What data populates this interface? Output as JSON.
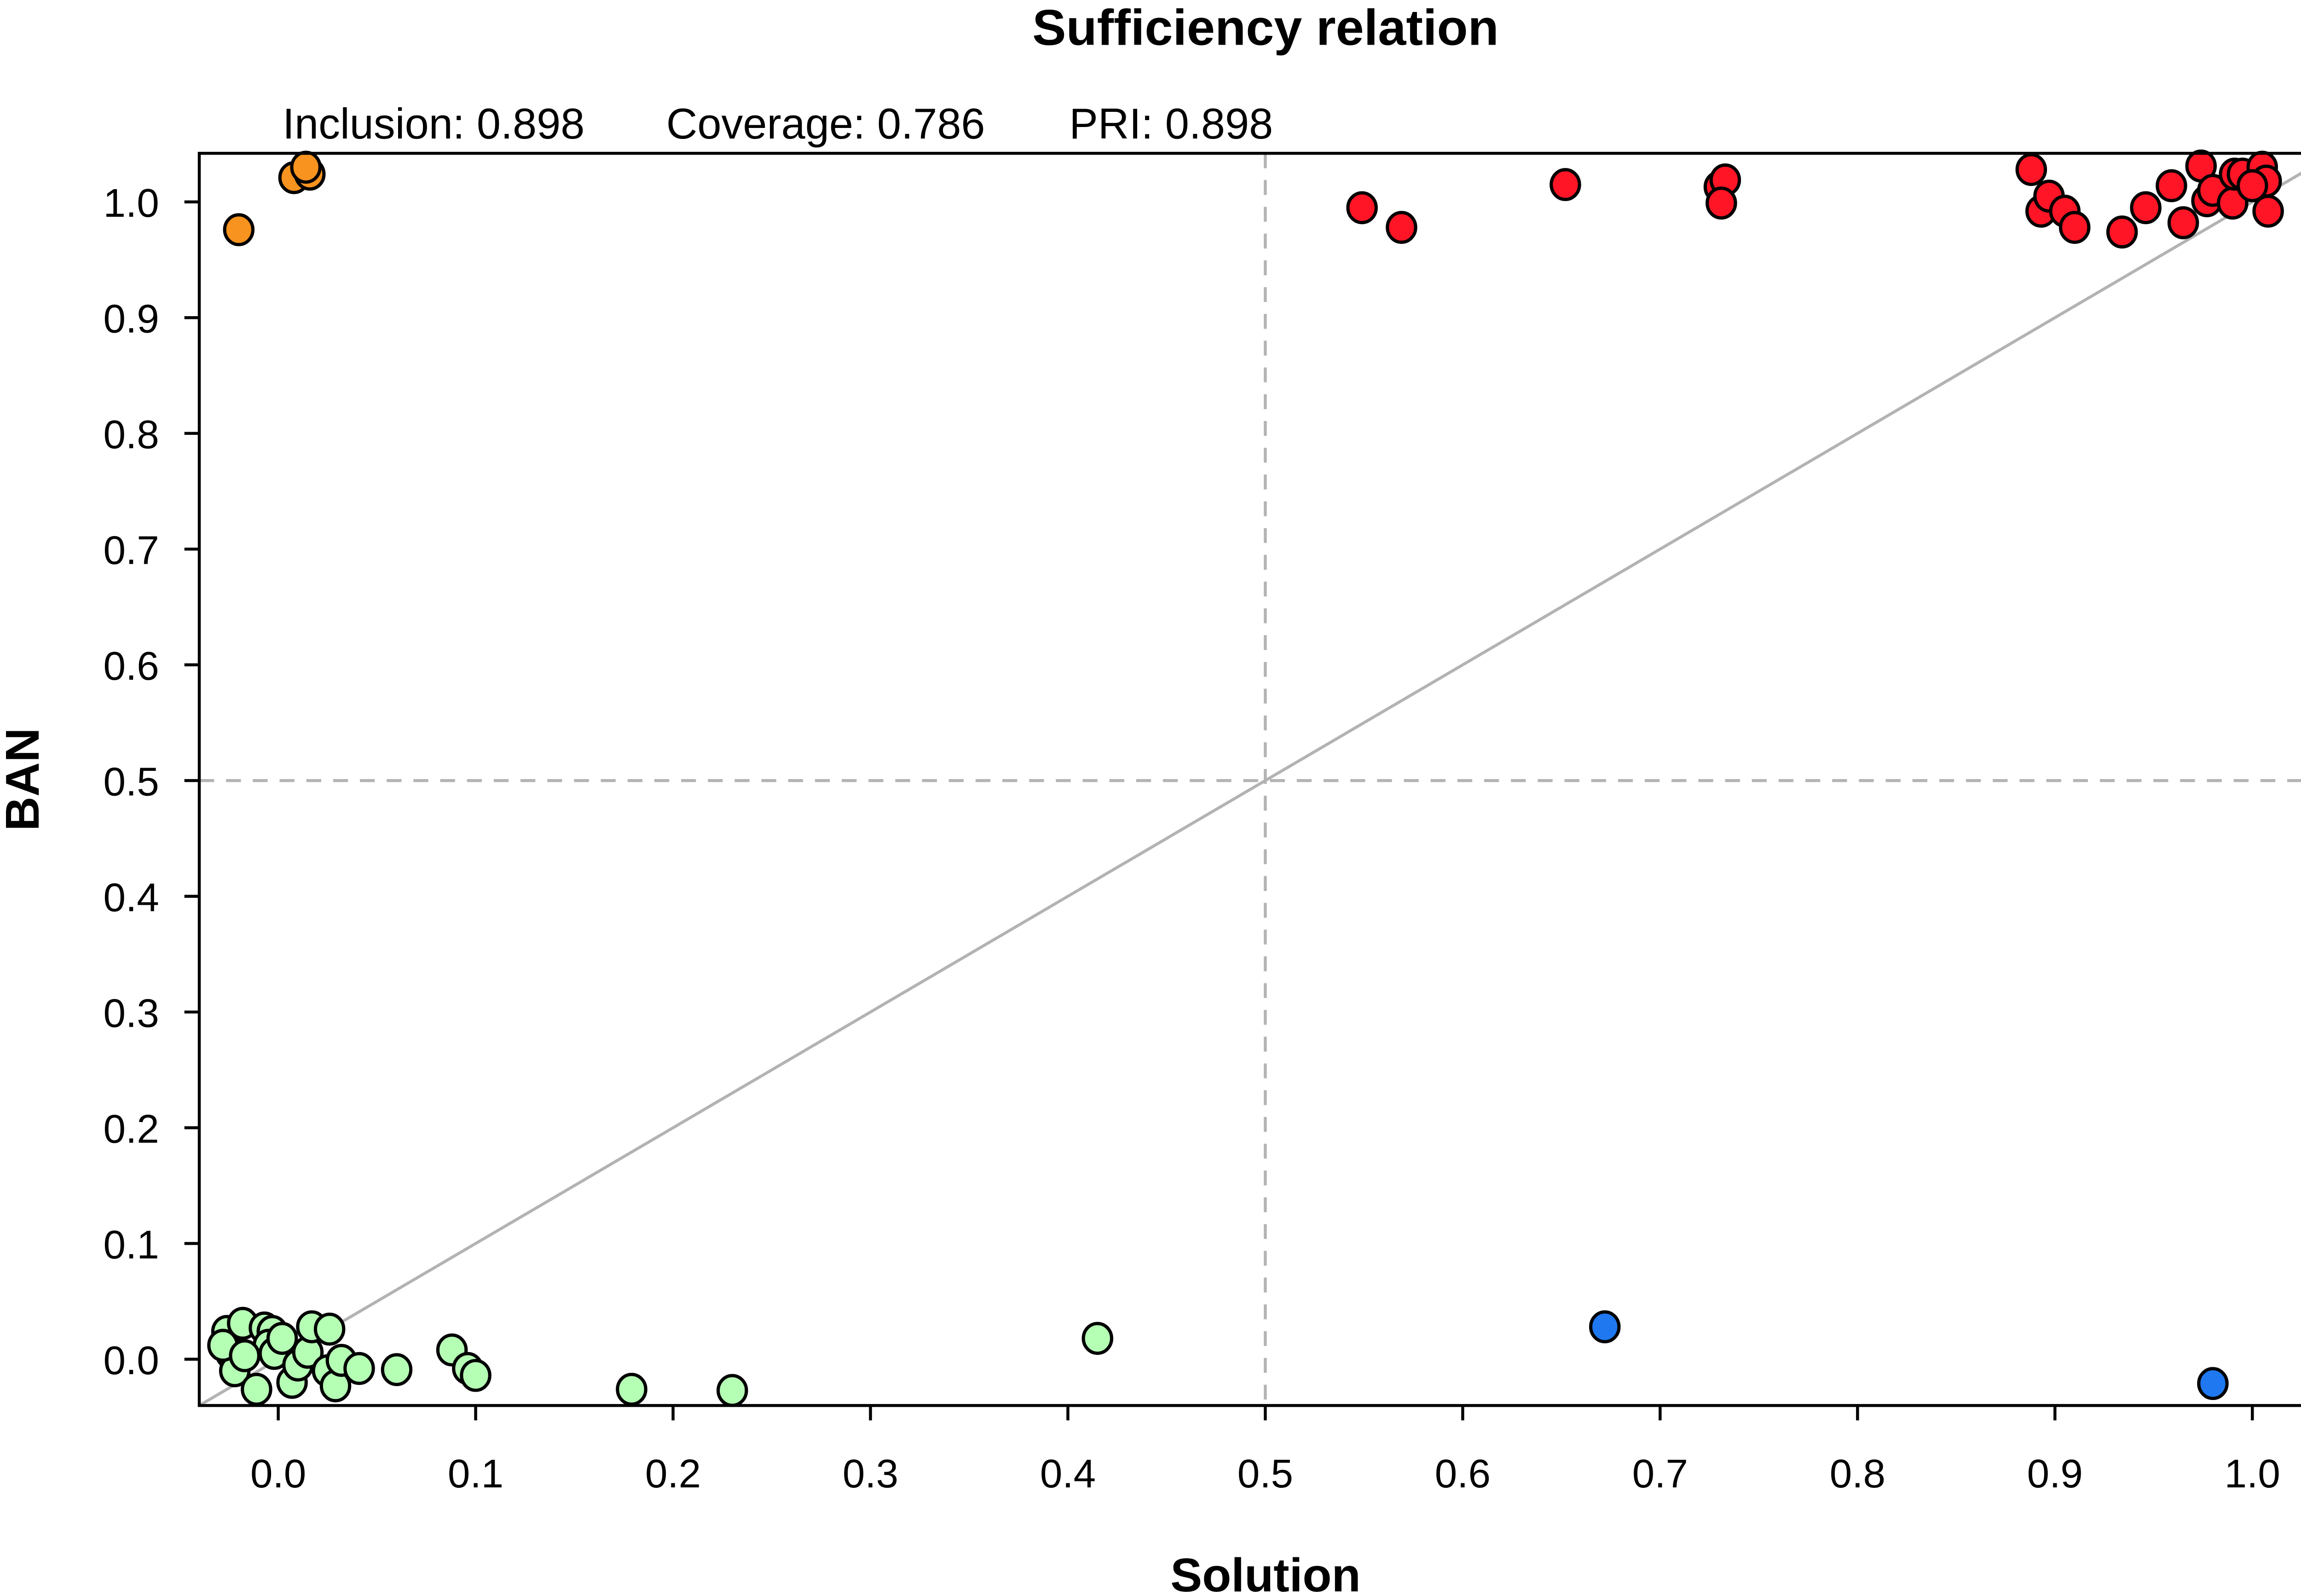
{
  "chart_data": {
    "type": "scatter",
    "title": "Sufficiency relation",
    "subtitle": {
      "inclusion": "Inclusion: 0.898",
      "coverage": "Coverage: 0.786",
      "pri": "PRI: 0.898"
    },
    "xlabel": "Solution",
    "ylabel": "BAN",
    "xlim": [
      -0.04,
      1.038
    ],
    "ylim": [
      -0.04,
      1.042
    ],
    "xticks": [
      "0.0",
      "0.1",
      "0.2",
      "0.3",
      "0.4",
      "0.5",
      "0.6",
      "0.7",
      "0.8",
      "0.9",
      "1.0"
    ],
    "yticks": [
      "0.0",
      "0.1",
      "0.2",
      "0.3",
      "0.4",
      "0.5",
      "0.6",
      "0.7",
      "0.8",
      "0.9",
      "1.0"
    ],
    "reference_lines": {
      "diagonal": true,
      "dashed_x": 0.5,
      "dashed_y": 0.5,
      "color": "#b3b3b3"
    },
    "grid": false,
    "groups": [
      {
        "color": "#f7931e",
        "points": [
          [
            -0.02,
            0.976
          ],
          [
            0.008,
            1.021
          ],
          [
            0.016,
            1.024
          ],
          [
            0.014,
            1.03
          ]
        ]
      },
      {
        "color": "#ff1526",
        "points": [
          [
            0.549,
            0.995
          ],
          [
            0.569,
            0.978
          ],
          [
            0.652,
            1.015
          ],
          [
            0.73,
            1.013
          ],
          [
            0.733,
            1.019
          ],
          [
            0.731,
            0.999
          ],
          [
            0.888,
            1.028
          ],
          [
            0.893,
            0.992
          ],
          [
            0.897,
            1.005
          ],
          [
            0.905,
            0.992
          ],
          [
            0.91,
            0.978
          ],
          [
            0.934,
            0.974
          ],
          [
            0.946,
            0.995
          ],
          [
            0.959,
            1.014
          ],
          [
            0.965,
            0.982
          ],
          [
            0.974,
            1.031
          ],
          [
            0.977,
            1.001
          ],
          [
            0.98,
            1.01
          ],
          [
            0.99,
            0.999
          ],
          [
            0.991,
            1.024
          ],
          [
            0.995,
            1.024
          ],
          [
            1.005,
            1.03
          ],
          [
            1.007,
            1.018
          ],
          [
            1.008,
            0.992
          ],
          [
            1.0,
            1.014
          ]
        ]
      },
      {
        "color": "#1f78f0",
        "points": [
          [
            0.672,
            0.028
          ],
          [
            0.98,
            -0.021
          ]
        ]
      },
      {
        "color": "#b5ffb5",
        "points": [
          [
            -0.026,
            0.024
          ],
          [
            -0.018,
            0.031
          ],
          [
            -0.024,
            0.005
          ],
          [
            -0.022,
            -0.01
          ],
          [
            -0.011,
            -0.026
          ],
          [
            -0.007,
            0.027
          ],
          [
            -0.003,
            0.024
          ],
          [
            -0.005,
            0.012
          ],
          [
            -0.002,
            0.005
          ],
          [
            0.007,
            -0.02
          ],
          [
            0.01,
            -0.005
          ],
          [
            0.015,
            0.006
          ],
          [
            0.017,
            0.028
          ],
          [
            0.026,
            0.026
          ],
          [
            0.025,
            -0.01
          ],
          [
            0.029,
            -0.023
          ],
          [
            0.032,
            -0.001
          ],
          [
            0.041,
            -0.008
          ],
          [
            0.06,
            -0.009
          ],
          [
            0.088,
            0.008
          ],
          [
            0.096,
            -0.008
          ],
          [
            0.1,
            -0.014
          ],
          [
            0.179,
            -0.026
          ],
          [
            0.23,
            -0.027
          ],
          [
            0.415,
            0.018
          ],
          [
            -0.028,
            0.012
          ],
          [
            -0.017,
            0.003
          ],
          [
            0.002,
            0.018
          ]
        ]
      }
    ]
  }
}
